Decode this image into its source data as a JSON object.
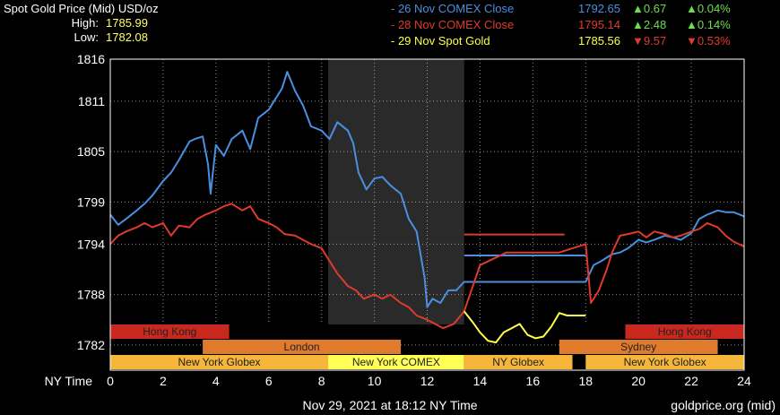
{
  "header": {
    "title": "Spot Gold Price (Mid) USD/oz",
    "high_label": "High:",
    "high_value": "1785.99",
    "low_label": "Low:",
    "low_value": "1782.08"
  },
  "legend": [
    {
      "label": "- 26 Nov COMEX Close",
      "price": "1792.65",
      "arrow": "▲",
      "change": "0.67",
      "pct": "0.04%",
      "color": "#4a8fe0",
      "change_color": "#6fdc4f"
    },
    {
      "label": "- 28 Nov COMEX Close",
      "price": "1795.14",
      "arrow": "▲",
      "change": "2.48",
      "pct": "0.14%",
      "color": "#e03a2c",
      "change_color": "#6fdc4f"
    },
    {
      "label": "- 29 Nov Spot Gold",
      "price": "1785.56",
      "arrow": "▼",
      "change": "9.57",
      "pct": "0.53%",
      "color": "#ffff44",
      "change_color": "#e03a2c"
    }
  ],
  "footer": {
    "timestamp": "Nov 29, 2021 at 18:12 NY Time",
    "source": "goldprice.org (mid)"
  },
  "chart_data": {
    "type": "line",
    "ylim": [
      1779,
      1816
    ],
    "xlim": [
      0,
      24
    ],
    "y_ticks": [
      "1816",
      "1811",
      "1805",
      "1799",
      "1794",
      "1788",
      "1782"
    ],
    "x_ticks": [
      "0",
      "2",
      "4",
      "6",
      "8",
      "10",
      "12",
      "14",
      "16",
      "18",
      "20",
      "22",
      "24"
    ],
    "xlabel": "NY Time",
    "shaded_hours": [
      8.25,
      13.4
    ],
    "sessions": [
      {
        "name": "Hong Kong",
        "start": 0,
        "end": 4.5,
        "row": 0,
        "color": "#c8281e"
      },
      {
        "name": "Hong Kong",
        "start": 19.5,
        "end": 24,
        "row": 0,
        "color": "#c8281e"
      },
      {
        "name": "London",
        "start": 3.5,
        "end": 11.0,
        "row": 1,
        "color": "#e07b2e"
      },
      {
        "name": "Sydney",
        "start": 17.0,
        "end": 23.0,
        "row": 1,
        "color": "#e07b2e"
      },
      {
        "name": "New York Globex",
        "start": 0,
        "end": 8.25,
        "row": 2,
        "color": "#f5b63a"
      },
      {
        "name": "New York COMEX",
        "start": 8.25,
        "end": 13.4,
        "row": 2,
        "color": "#ffff55"
      },
      {
        "name": "NY Globex",
        "start": 13.4,
        "end": 17.5,
        "row": 2,
        "color": "#f5b63a"
      },
      {
        "name": "New York Globex",
        "start": 18.0,
        "end": 24,
        "row": 2,
        "color": "#f5b63a"
      }
    ],
    "series": [
      {
        "color": "#4a8fe0",
        "x": [
          0,
          0.3,
          0.6,
          1.0,
          1.3,
          1.6,
          2.0,
          2.3,
          2.6,
          3.0,
          3.2,
          3.5,
          3.7,
          3.8,
          4.0,
          4.3,
          4.6,
          5.0,
          5.3,
          5.6,
          6.0,
          6.2,
          6.5,
          6.7,
          7.0,
          7.3,
          7.6,
          8.0,
          8.3,
          8.6,
          9.0,
          9.2,
          9.4,
          9.7,
          10.0,
          10.3,
          10.6,
          11.0,
          11.3,
          11.6,
          11.9,
          12.0,
          12.2,
          12.5,
          12.8,
          13.1,
          13.4,
          14.0,
          16.0,
          18.0,
          18.3,
          18.6,
          19.0,
          19.3,
          19.6,
          20.0,
          20.3,
          20.6,
          21.0,
          21.3,
          21.6,
          22.0,
          22.3,
          22.6,
          23.0,
          23.3,
          23.6,
          24.0
        ],
        "y": [
          1797.5,
          1796.3,
          1797.0,
          1798.0,
          1798.8,
          1799.8,
          1801.5,
          1802.5,
          1804.0,
          1806.2,
          1806.5,
          1806.8,
          1803.5,
          1800.0,
          1805.8,
          1804.5,
          1806.5,
          1807.5,
          1805.3,
          1809.0,
          1810.0,
          1811.0,
          1812.5,
          1814.5,
          1812.2,
          1810.5,
          1808.0,
          1807.5,
          1806.5,
          1808.5,
          1807.5,
          1806.0,
          1802.5,
          1800.5,
          1801.8,
          1802.0,
          1801.0,
          1800.0,
          1797.0,
          1795.5,
          1790.0,
          1786.5,
          1787.5,
          1787.0,
          1788.5,
          1788.5,
          1789.5,
          1789.5,
          1789.5,
          1789.5,
          1791.5,
          1792.0,
          1792.8,
          1793.0,
          1793.5,
          1794.5,
          1794.2,
          1794.5,
          1795.0,
          1794.8,
          1794.5,
          1795.3,
          1797.0,
          1797.5,
          1798.0,
          1797.8,
          1797.8,
          1797.3
        ]
      },
      {
        "color": "#e03a2c",
        "x": [
          0,
          0.3,
          0.6,
          1.0,
          1.3,
          1.6,
          2.0,
          2.3,
          2.6,
          3.0,
          3.3,
          3.6,
          4.0,
          4.3,
          4.6,
          5.0,
          5.3,
          5.6,
          6.0,
          6.3,
          6.6,
          7.0,
          7.3,
          7.6,
          8.0,
          8.3,
          8.6,
          9.0,
          9.3,
          9.6,
          10.0,
          10.3,
          10.6,
          11.0,
          11.3,
          11.6,
          12.0,
          12.3,
          12.6,
          13.0,
          13.4,
          14.0,
          15.0,
          17.0,
          18.0,
          18.2,
          18.5,
          18.8,
          19.0,
          19.3,
          19.6,
          20.0,
          20.3,
          20.6,
          21.0,
          21.3,
          21.6,
          22.0,
          22.3,
          22.6,
          23.0,
          23.3,
          23.6,
          24.0
        ],
        "y": [
          1794.0,
          1795.0,
          1795.5,
          1796.0,
          1796.5,
          1796.0,
          1796.5,
          1795.0,
          1796.2,
          1796.0,
          1797.0,
          1797.5,
          1798.0,
          1798.5,
          1798.8,
          1798.0,
          1798.5,
          1797.0,
          1796.5,
          1796.0,
          1795.2,
          1795.0,
          1794.5,
          1794.0,
          1793.5,
          1792.0,
          1790.5,
          1789.0,
          1788.5,
          1787.5,
          1788.0,
          1787.5,
          1788.0,
          1787.0,
          1786.5,
          1785.5,
          1785.0,
          1784.5,
          1784.0,
          1784.5,
          1786.0,
          1791.5,
          1793.0,
          1793.0,
          1794.0,
          1787.0,
          1788.5,
          1791.0,
          1793.0,
          1795.0,
          1795.2,
          1795.5,
          1794.8,
          1795.5,
          1795.2,
          1794.8,
          1795.0,
          1795.5,
          1795.8,
          1796.5,
          1796.0,
          1795.0,
          1794.3,
          1793.7
        ]
      },
      {
        "color": "#ffff44",
        "x": [
          13.4,
          13.7,
          14.0,
          14.3,
          14.6,
          14.9,
          15.2,
          15.5,
          15.8,
          16.1,
          16.4,
          16.7,
          17.0,
          17.3,
          17.6,
          18.0
        ],
        "y": [
          1786.0,
          1784.8,
          1783.5,
          1782.5,
          1782.3,
          1783.5,
          1784.0,
          1784.5,
          1783.2,
          1782.8,
          1783.0,
          1784.2,
          1785.8,
          1785.5,
          1785.5,
          1785.5
        ]
      }
    ],
    "reference_lines": [
      {
        "series": "26 Nov COMEX Close",
        "value": 1792.65,
        "from": 13.4,
        "to": 18.0,
        "color": "#4a8fe0"
      },
      {
        "series": "28 Nov COMEX Close",
        "value": 1795.14,
        "from": 13.4,
        "to": 17.2,
        "color": "#e03a2c"
      }
    ]
  }
}
